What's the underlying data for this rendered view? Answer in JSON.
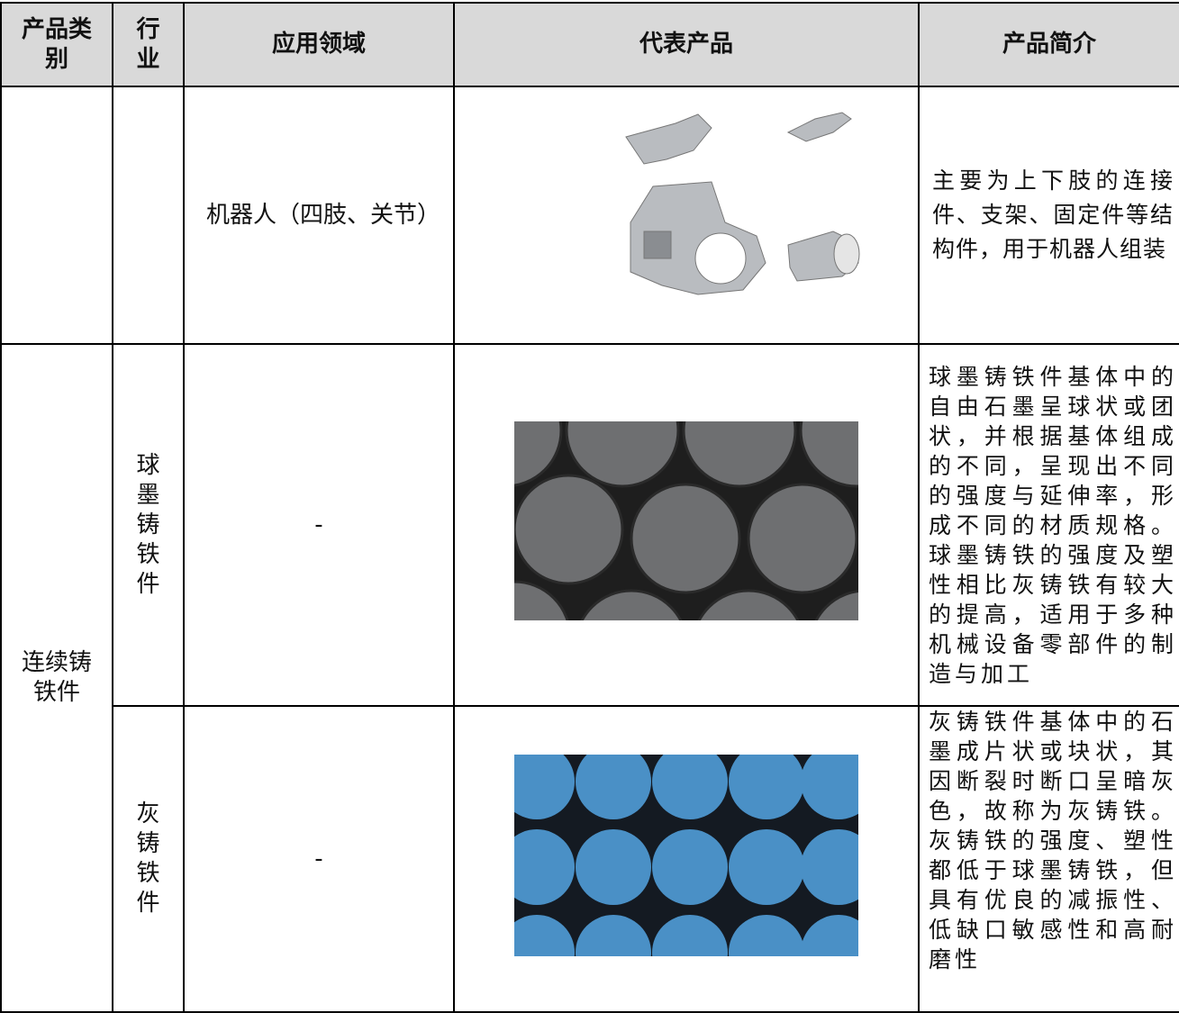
{
  "table": {
    "header": [
      "产品类别",
      "行业",
      "应用领域",
      "代表产品",
      "产品简介"
    ],
    "rows": [
      {
        "application": "机器人（四肢、关节）",
        "description": "主要为上下肢的连接件、支架、固定件等结构件，用于机器人组装"
      },
      {
        "category": "连续铸铁件",
        "industry": "球墨铸铁件",
        "application": "-",
        "description": "球墨铸铁件基体中的自由石墨呈球状或团状，并根据基体组成的不同，呈现出不同的强度与延伸率，形成不同的材质规格。球墨铸铁的强度及塑性相比灰铸铁有较大的提高，适用于多种机械设备零部件的制造与加工"
      },
      {
        "industry": "灰铸铁件",
        "application": "-",
        "description": "灰铸铁件基体中的石墨成片状或块状，其因断裂时断口呈暗灰色，故称为灰铸铁。灰铸铁的强度、塑性都低于球墨铸铁，但具有优良的减振性、低缺口敏感性和高耐磨性"
      }
    ]
  }
}
